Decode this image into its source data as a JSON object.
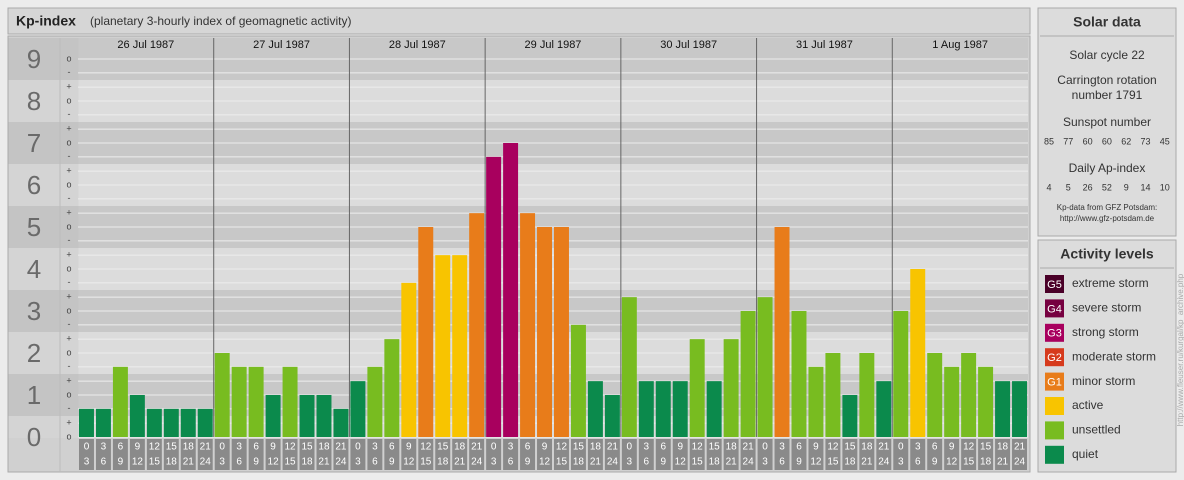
{
  "chart_data": {
    "type": "bar",
    "title": "Kp-index",
    "subtitle": "(planetary 3-hourly index of geomagnetic activity)",
    "ylim": [
      0,
      9.5
    ],
    "yticks": [
      0,
      1,
      2,
      3,
      4,
      5,
      6,
      7,
      8,
      9
    ],
    "minor_ticks": [
      {
        "value": 9,
        "label": "o"
      },
      {
        "value": 8.67,
        "label": "-"
      },
      {
        "value": 8.33,
        "label": "+"
      },
      {
        "value": 8,
        "label": "o"
      },
      {
        "value": 7.67,
        "label": "-"
      },
      {
        "value": 7.33,
        "label": "+"
      },
      {
        "value": 7,
        "label": "o"
      },
      {
        "value": 6.67,
        "label": "-"
      },
      {
        "value": 6.33,
        "label": "+"
      },
      {
        "value": 6,
        "label": "o"
      },
      {
        "value": 5.67,
        "label": "-"
      },
      {
        "value": 5.33,
        "label": "+"
      },
      {
        "value": 5,
        "label": "o"
      },
      {
        "value": 4.67,
        "label": "-"
      },
      {
        "value": 4.33,
        "label": "+"
      },
      {
        "value": 4,
        "label": "o"
      },
      {
        "value": 3.67,
        "label": "-"
      },
      {
        "value": 3.33,
        "label": "+"
      },
      {
        "value": 3,
        "label": "o"
      },
      {
        "value": 2.67,
        "label": "-"
      },
      {
        "value": 2.33,
        "label": "+"
      },
      {
        "value": 2,
        "label": "o"
      },
      {
        "value": 1.67,
        "label": "-"
      },
      {
        "value": 1.33,
        "label": "+"
      },
      {
        "value": 1,
        "label": "o"
      },
      {
        "value": 0.67,
        "label": "-"
      },
      {
        "value": 0.33,
        "label": "+"
      },
      {
        "value": 0,
        "label": "o"
      }
    ],
    "hours": [
      "0",
      "3",
      "6",
      "9",
      "12",
      "15",
      "18",
      "21",
      "24"
    ],
    "series": [
      {
        "name": "26 Jul 1987",
        "values": [
          0.67,
          0.67,
          1.67,
          1,
          0.67,
          0.67,
          0.67,
          0.67
        ],
        "colors": [
          "#0b8a4c",
          "#0b8a4c",
          "#78bc20",
          "#0b8a4c",
          "#0b8a4c",
          "#0b8a4c",
          "#0b8a4c",
          "#0b8a4c"
        ]
      },
      {
        "name": "27 Jul 1987",
        "values": [
          2,
          1.67,
          1.67,
          1,
          1.67,
          1,
          1,
          0.67
        ],
        "colors": [
          "#78bc20",
          "#78bc20",
          "#78bc20",
          "#0b8a4c",
          "#78bc20",
          "#0b8a4c",
          "#0b8a4c",
          "#0b8a4c"
        ]
      },
      {
        "name": "28 Jul 1987",
        "values": [
          1.33,
          1.67,
          2.33,
          3.67,
          5,
          4.33,
          4.33,
          5.33
        ],
        "colors": [
          "#0b8a4c",
          "#78bc20",
          "#78bc20",
          "#f8c400",
          "#e87c1a",
          "#f8c400",
          "#f8c400",
          "#e87c1a"
        ]
      },
      {
        "name": "29 Jul 1987",
        "values": [
          6.67,
          7,
          5.33,
          5,
          5,
          2.67,
          1.33,
          1
        ],
        "colors": [
          "#a8005e",
          "#a8005e",
          "#e87c1a",
          "#e87c1a",
          "#e87c1a",
          "#78bc20",
          "#0b8a4c",
          "#0b8a4c"
        ]
      },
      {
        "name": "30 Jul 1987",
        "values": [
          3.33,
          1.33,
          1.33,
          1.33,
          2.33,
          1.33,
          2.33,
          3
        ],
        "colors": [
          "#78bc20",
          "#0b8a4c",
          "#0b8a4c",
          "#0b8a4c",
          "#78bc20",
          "#0b8a4c",
          "#78bc20",
          "#78bc20"
        ]
      },
      {
        "name": "31 Jul 1987",
        "values": [
          3.33,
          5,
          3,
          1.67,
          2,
          1,
          2,
          1.33
        ],
        "colors": [
          "#78bc20",
          "#e87c1a",
          "#78bc20",
          "#78bc20",
          "#78bc20",
          "#0b8a4c",
          "#78bc20",
          "#0b8a4c"
        ]
      },
      {
        "name": "1 Aug 1987",
        "values": [
          3,
          4,
          2,
          1.67,
          2,
          1.67,
          1.33,
          1.33
        ],
        "colors": [
          "#78bc20",
          "#f8c400",
          "#78bc20",
          "#78bc20",
          "#78bc20",
          "#78bc20",
          "#0b8a4c",
          "#0b8a4c"
        ]
      }
    ]
  },
  "solar_data": {
    "title": "Solar data",
    "cycle": "Solar cycle 22",
    "carrington": [
      "Carrington rotation",
      "number 1791"
    ],
    "sunspot_title": "Sunspot number",
    "sunspot": [
      85,
      77,
      60,
      60,
      62,
      73,
      45
    ],
    "ap_title": "Daily Ap-index",
    "ap": [
      4,
      5,
      26,
      52,
      9,
      14,
      10
    ],
    "source": [
      "Kp-data from GFZ Potsdam:",
      "http://www.gfz-potsdam.de"
    ]
  },
  "activity_levels": {
    "title": "Activity levels",
    "items": [
      {
        "badge": "G5",
        "name": "extreme storm",
        "color": "#4a0028"
      },
      {
        "badge": "G4",
        "name": "severe storm",
        "color": "#760040"
      },
      {
        "badge": "G3",
        "name": "strong storm",
        "color": "#a8005e"
      },
      {
        "badge": "G2",
        "name": "moderate storm",
        "color": "#d63a1c"
      },
      {
        "badge": "G1",
        "name": "minor storm",
        "color": "#e87c1a"
      },
      {
        "name": "active",
        "color": "#f8c400"
      },
      {
        "name": "unsettled",
        "color": "#78bc20"
      },
      {
        "name": "quiet",
        "color": "#0b8a4c"
      }
    ]
  },
  "source_url": "http://www.fleuser.ru/kurgal/kp_archive.php"
}
